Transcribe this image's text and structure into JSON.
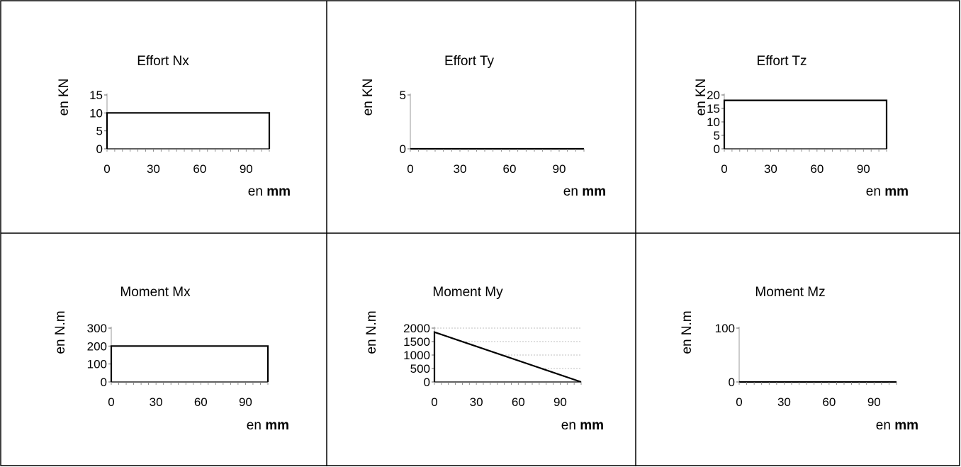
{
  "chart_data": [
    {
      "type": "area",
      "title": "Effort Nx",
      "ylabel": "en KN",
      "xlabel_prefix": "en ",
      "xlabel_unit": "mm",
      "x": [
        0,
        105
      ],
      "y": [
        10,
        10
      ],
      "ylim": [
        0,
        15
      ],
      "yticks": [
        "0",
        "5",
        "10",
        "15"
      ],
      "xticks": [
        "0",
        "30",
        "60",
        "90"
      ],
      "xlim": [
        0,
        105
      ]
    },
    {
      "type": "area",
      "title": "Effort Ty",
      "ylabel": "en KN",
      "xlabel_prefix": "en ",
      "xlabel_unit": "mm",
      "x": [
        0,
        105
      ],
      "y": [
        0,
        0
      ],
      "ylim": [
        0,
        5
      ],
      "yticks": [
        "0",
        "5"
      ],
      "xticks": [
        "0",
        "30",
        "60",
        "90"
      ],
      "xlim": [
        0,
        105
      ]
    },
    {
      "type": "area",
      "title": "Effort Tz",
      "ylabel": "en KN",
      "xlabel_prefix": "en ",
      "xlabel_unit": "mm",
      "x": [
        0,
        105
      ],
      "y": [
        18,
        18
      ],
      "ylim": [
        0,
        20
      ],
      "yticks": [
        "0",
        "5",
        "10",
        "15",
        "20"
      ],
      "xticks": [
        "0",
        "30",
        "60",
        "90"
      ],
      "xlim": [
        0,
        105
      ]
    },
    {
      "type": "area",
      "title": "Moment Mx",
      "ylabel": "en N.m",
      "xlabel_prefix": "en ",
      "xlabel_unit": "mm",
      "x": [
        0,
        105
      ],
      "y": [
        200,
        200
      ],
      "ylim": [
        0,
        300
      ],
      "yticks": [
        "0",
        "100",
        "200",
        "300"
      ],
      "xticks": [
        "0",
        "30",
        "60",
        "90"
      ],
      "xlim": [
        0,
        105
      ]
    },
    {
      "type": "area",
      "title": "Moment My",
      "ylabel": "en N.m",
      "xlabel_prefix": "en ",
      "xlabel_unit": "mm",
      "x": [
        0,
        105
      ],
      "y": [
        1850,
        0
      ],
      "ylim": [
        0,
        2000
      ],
      "yticks": [
        "0",
        "500",
        "1000",
        "1500",
        "2000"
      ],
      "xticks": [
        "0",
        "30",
        "60",
        "90"
      ],
      "xlim": [
        0,
        105
      ],
      "grid": true
    },
    {
      "type": "area",
      "title": "Moment Mz",
      "ylabel": "en N.m",
      "xlabel_prefix": "en ",
      "xlabel_unit": "mm",
      "x": [
        0,
        105
      ],
      "y": [
        0,
        0
      ],
      "ylim": [
        0,
        100
      ],
      "yticks": [
        "0",
        "100"
      ],
      "xticks": [
        "0",
        "30",
        "60",
        "90"
      ],
      "xlim": [
        0,
        105
      ]
    }
  ]
}
